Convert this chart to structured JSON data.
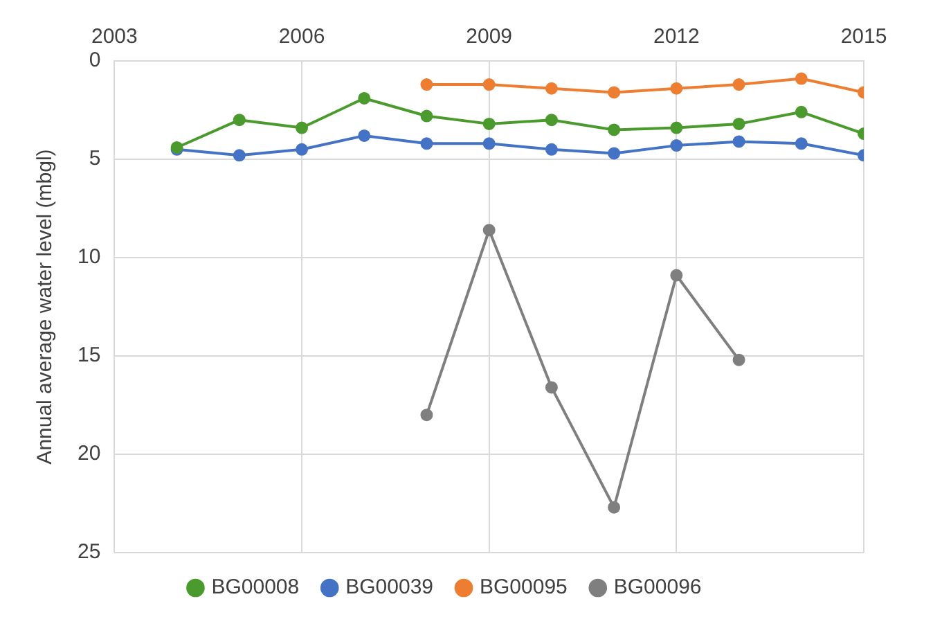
{
  "chart_data": {
    "type": "line",
    "ylabel": "Annual average water level (mbgl)",
    "x": [
      2004,
      2005,
      2006,
      2007,
      2008,
      2009,
      2010,
      2011,
      2012,
      2013,
      2014,
      2015
    ],
    "xlim": [
      2003,
      2015
    ],
    "xticks": [
      2003,
      2006,
      2009,
      2012,
      2015
    ],
    "ylim": [
      25,
      0
    ],
    "yticks": [
      0,
      5,
      10,
      15,
      20,
      25
    ],
    "grid": true,
    "legend": "bottom",
    "marker": "circle",
    "line_style": "solid",
    "series": [
      {
        "name": "BG00008",
        "color": "#4a9a2e",
        "values": [
          4.4,
          3.0,
          3.4,
          1.9,
          2.8,
          3.2,
          3.0,
          3.5,
          3.4,
          3.2,
          2.6,
          3.7
        ]
      },
      {
        "name": "BG00039",
        "color": "#4472c4",
        "values": [
          4.5,
          4.8,
          4.5,
          3.8,
          4.2,
          4.2,
          4.5,
          4.7,
          4.3,
          4.1,
          4.2,
          4.8
        ]
      },
      {
        "name": "BG00095",
        "color": "#ed7d31",
        "values": [
          null,
          null,
          null,
          null,
          1.2,
          1.2,
          1.4,
          1.6,
          1.4,
          1.2,
          0.9,
          1.6
        ]
      },
      {
        "name": "BG00096",
        "color": "#7f7f7f",
        "values": [
          null,
          null,
          null,
          null,
          18.0,
          8.6,
          16.6,
          22.7,
          10.9,
          15.2,
          null,
          null
        ]
      }
    ]
  }
}
